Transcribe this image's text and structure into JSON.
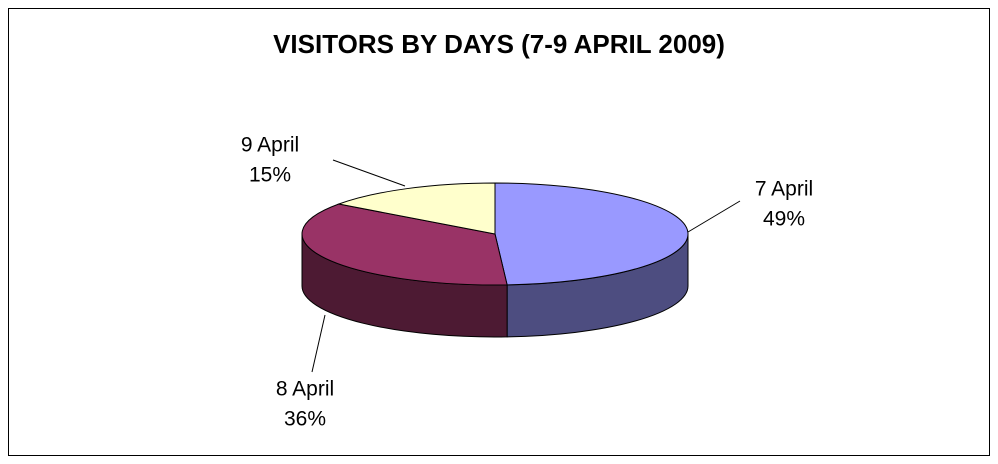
{
  "chart_data": {
    "type": "pie3d",
    "title": "VISITORS BY DAYS (7-9 APRIL 2009)",
    "categories": [
      "7 April",
      "8 April",
      "9 April"
    ],
    "values": [
      49,
      36,
      15
    ],
    "value_labels": [
      "49%",
      "36%",
      "15%"
    ],
    "colors": [
      "#9999ff",
      "#993366",
      "#ffffcc"
    ]
  }
}
